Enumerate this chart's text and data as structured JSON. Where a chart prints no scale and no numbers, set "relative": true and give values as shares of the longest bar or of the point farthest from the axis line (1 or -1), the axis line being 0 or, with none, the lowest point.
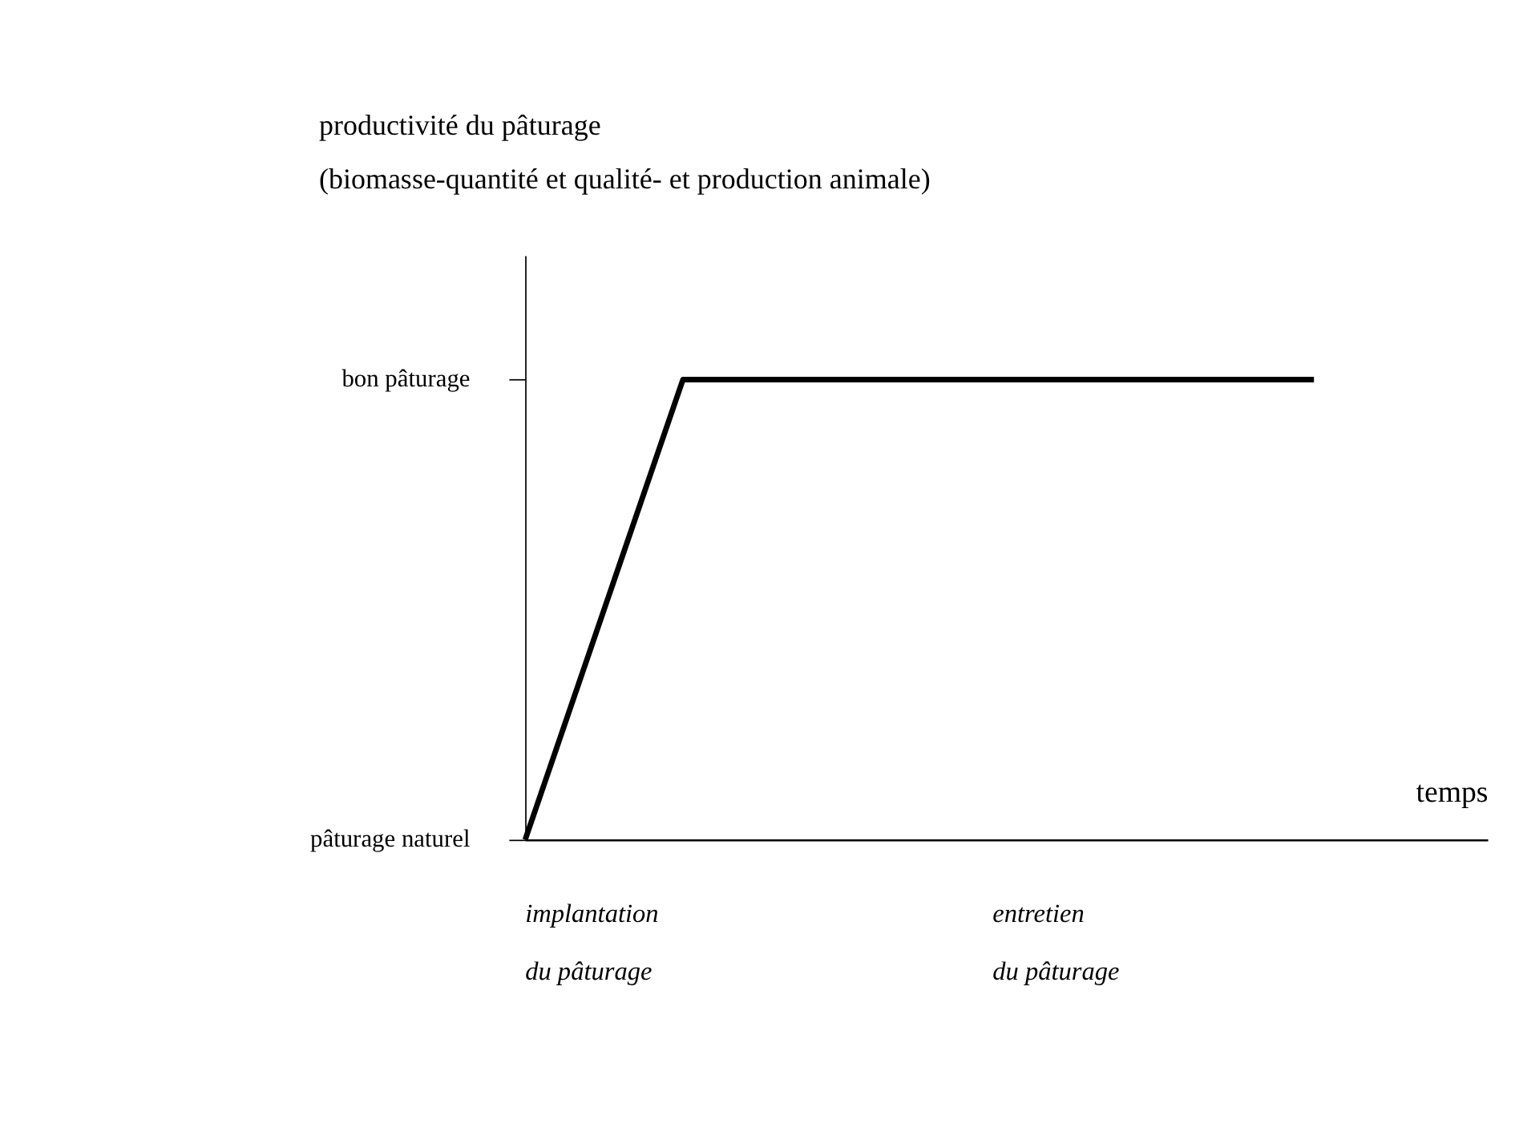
{
  "chart_data": {
    "type": "line",
    "title": "productivité du pâturage",
    "subtitle": "(biomasse-quantité et qualité- et production animale)",
    "xlabel": "temps",
    "categories": [
      null,
      null,
      null,
      null,
      null,
      null
    ],
    "series": [
      {
        "color": "#000000",
        "values": [
          0,
          1,
          1,
          1,
          1,
          1
        ]
      }
    ],
    "relative": true,
    "annotations": [
      "pâturage naturel",
      "bon pâturage",
      "implantation du pâturage",
      "entretien du pâturage"
    ],
    "tick_labels": false,
    "grid": false,
    "legend": false,
    "marker": "none",
    "line_style": "solid"
  }
}
